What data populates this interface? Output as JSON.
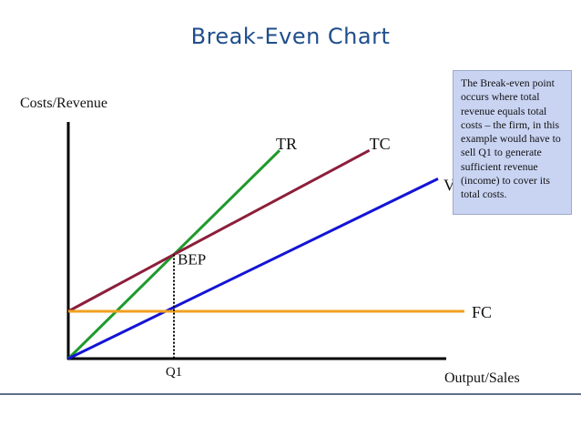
{
  "chart_data": {
    "type": "line",
    "title": "Break-Even Chart",
    "ylabel": "Costs/Revenue",
    "xlabel": "Output/Sales",
    "x_marker": "Q1",
    "xlim": [
      0,
      3.75
    ],
    "ylim": [
      0,
      5
    ],
    "lines": [
      {
        "name": "TR",
        "color": "#1e9a2c",
        "x": [
          0,
          1.0,
          2.0
        ],
        "y": [
          0,
          2.2,
          4.4
        ]
      },
      {
        "name": "TC",
        "color": "#8c1f3a",
        "x": [
          0,
          1.0,
          2.85
        ],
        "y": [
          1.0,
          2.2,
          4.4
        ]
      },
      {
        "name": "VC",
        "color": "#1414d6",
        "x": [
          0,
          3.5
        ],
        "y": [
          0,
          3.8
        ]
      },
      {
        "name": "FC",
        "color": "#f0a020",
        "x": [
          0,
          3.75
        ],
        "y": [
          1.0,
          1.0
        ]
      }
    ],
    "break_even": {
      "label": "BEP",
      "x": 1.0,
      "y": 2.2
    },
    "annotation": "The Break-even point occurs where total revenue equals total costs – the firm, in this example would have to sell Q1 to generate sufficient revenue (income) to cover its total costs.",
    "grid": false,
    "legend": "none"
  }
}
